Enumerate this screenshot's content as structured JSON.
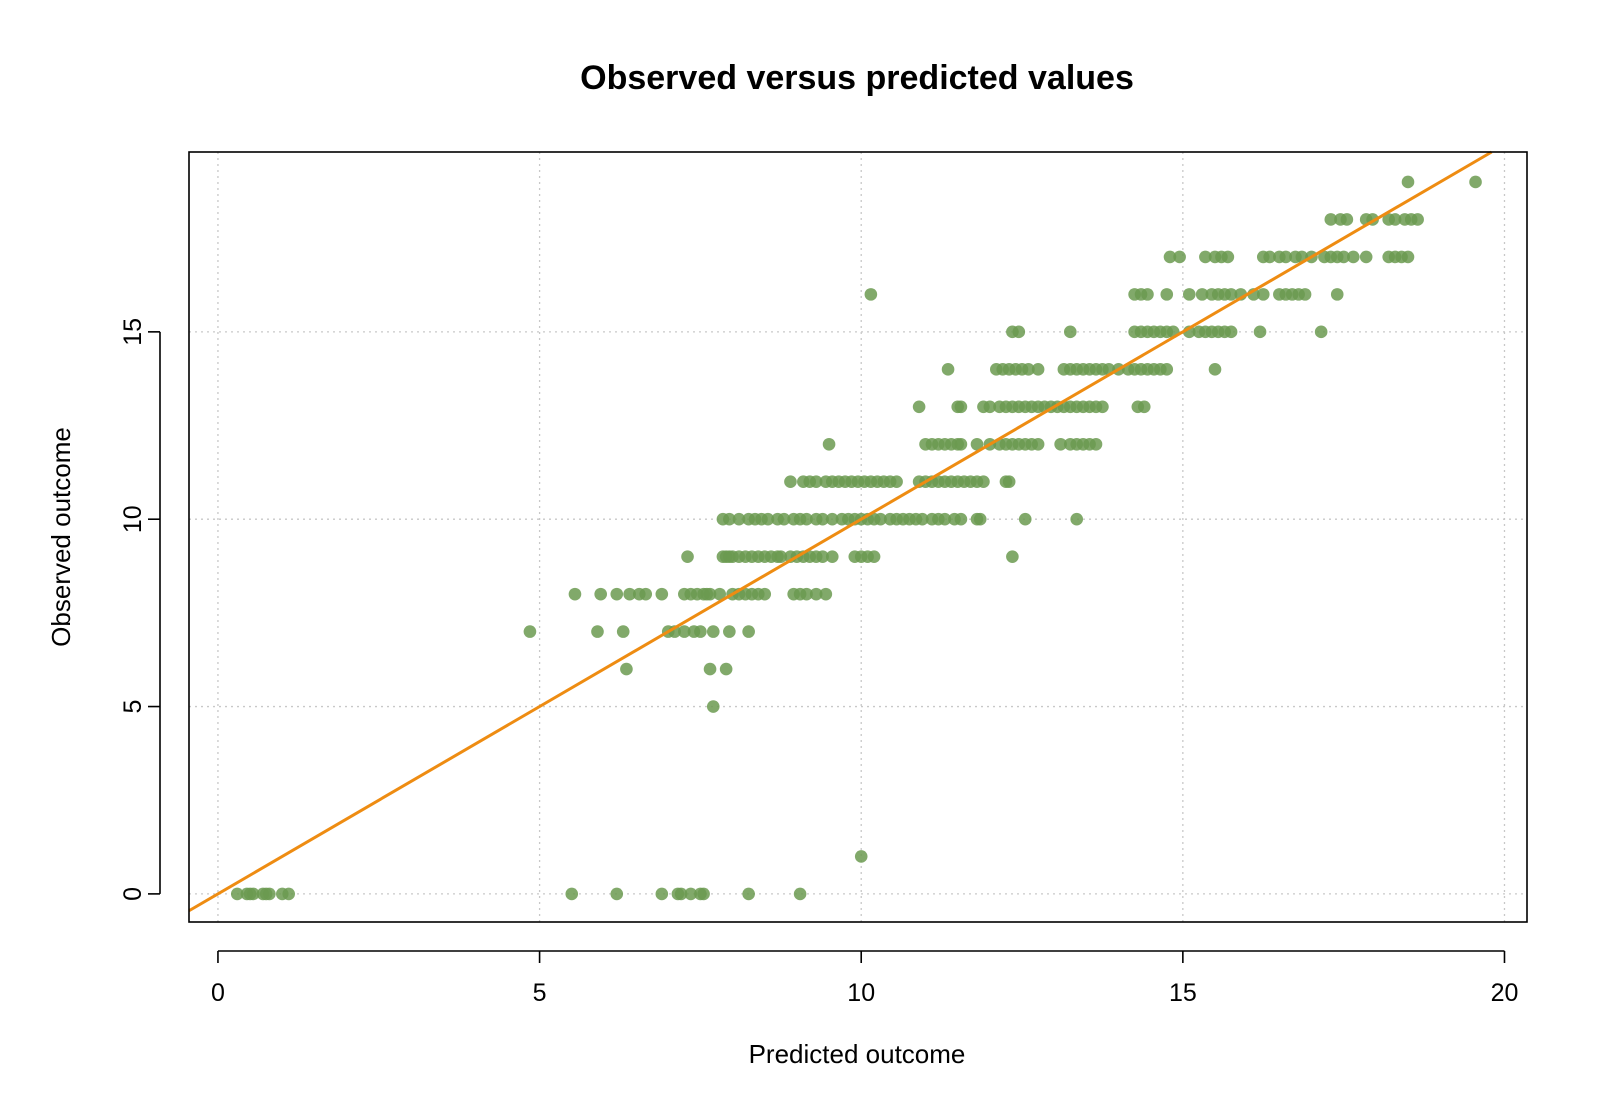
{
  "chart_data": {
    "type": "scatter",
    "title": "Observed versus predicted values",
    "xlabel": "Predicted outcome",
    "ylabel": "Observed outcome",
    "xlim": [
      -0.45,
      20.35
    ],
    "ylim": [
      -0.75,
      19.8
    ],
    "xticks": [
      0,
      5,
      10,
      15,
      20
    ],
    "yticks": [
      0,
      5,
      10,
      15
    ],
    "xtick_labels": [
      "0",
      "5",
      "10",
      "15",
      "20"
    ],
    "ytick_labels": [
      "0",
      "5",
      "10",
      "15"
    ],
    "grid": true,
    "point_color": "#6b9a50",
    "line_color": "#ee8c12",
    "reference_line": {
      "intercept": 0,
      "slope": 1
    },
    "rows": [
      {
        "y": 0,
        "x": [
          0.3,
          0.45,
          0.5,
          0.55,
          0.7,
          0.75,
          0.8,
          1.0,
          1.1,
          5.5,
          6.2,
          6.9,
          7.15,
          7.2,
          7.35,
          7.5,
          7.55,
          8.25,
          9.05
        ]
      },
      {
        "y": 1,
        "x": [
          10.0
        ]
      },
      {
        "y": 5,
        "x": [
          7.7
        ]
      },
      {
        "y": 6,
        "x": [
          6.35,
          7.65,
          7.9
        ]
      },
      {
        "y": 7,
        "x": [
          4.85,
          5.9,
          6.3,
          7.0,
          7.1,
          7.25,
          7.4,
          7.5,
          7.7,
          7.95,
          8.25
        ]
      },
      {
        "y": 8,
        "x": [
          5.55,
          5.95,
          6.2,
          6.4,
          6.55,
          6.65,
          6.9,
          7.25,
          7.35,
          7.45,
          7.55,
          7.6,
          7.65,
          7.8,
          8.0,
          8.1,
          8.2,
          8.3,
          8.4,
          8.5,
          8.95,
          9.05,
          9.15,
          9.3,
          9.45
        ]
      },
      {
        "y": 9,
        "x": [
          7.3,
          7.85,
          7.9,
          7.95,
          8.0,
          8.1,
          8.2,
          8.3,
          8.4,
          8.5,
          8.6,
          8.7,
          8.75,
          8.9,
          9.0,
          9.1,
          9.2,
          9.3,
          9.4,
          9.55,
          9.9,
          10.0,
          10.1,
          10.2,
          12.35
        ]
      },
      {
        "y": 10,
        "x": [
          7.85,
          7.95,
          8.1,
          8.25,
          8.35,
          8.45,
          8.55,
          8.7,
          8.8,
          8.95,
          9.05,
          9.15,
          9.3,
          9.4,
          9.55,
          9.7,
          9.8,
          9.9,
          10.0,
          10.1,
          10.2,
          10.3,
          10.45,
          10.55,
          10.65,
          10.75,
          10.85,
          10.95,
          11.1,
          11.2,
          11.3,
          11.45,
          11.55,
          11.8,
          11.85,
          12.55,
          13.35
        ]
      },
      {
        "y": 11,
        "x": [
          8.9,
          9.1,
          9.2,
          9.3,
          9.45,
          9.55,
          9.65,
          9.75,
          9.85,
          9.95,
          10.05,
          10.15,
          10.25,
          10.35,
          10.45,
          10.55,
          10.9,
          11.0,
          11.1,
          11.2,
          11.3,
          11.4,
          11.5,
          11.6,
          11.7,
          11.8,
          11.9,
          12.25,
          12.3
        ]
      },
      {
        "y": 12,
        "x": [
          9.5,
          11.0,
          11.1,
          11.2,
          11.3,
          11.4,
          11.5,
          11.55,
          11.8,
          12.0,
          12.15,
          12.25,
          12.35,
          12.45,
          12.55,
          12.65,
          12.75,
          13.1,
          13.25,
          13.35,
          13.45,
          13.55,
          13.65
        ]
      },
      {
        "y": 13,
        "x": [
          10.9,
          11.5,
          11.55,
          11.9,
          12.0,
          12.15,
          12.25,
          12.35,
          12.45,
          12.55,
          12.65,
          12.75,
          12.85,
          12.95,
          13.05,
          13.15,
          13.25,
          13.35,
          13.45,
          13.55,
          13.65,
          13.75,
          14.3,
          14.4
        ]
      },
      {
        "y": 14,
        "x": [
          11.35,
          12.1,
          12.2,
          12.3,
          12.4,
          12.5,
          12.6,
          12.75,
          13.15,
          13.25,
          13.35,
          13.45,
          13.55,
          13.65,
          13.75,
          13.85,
          14.0,
          14.15,
          14.25,
          14.35,
          14.45,
          14.55,
          14.65,
          14.75,
          15.5
        ]
      },
      {
        "y": 15,
        "x": [
          12.35,
          12.45,
          13.25,
          14.25,
          14.35,
          14.45,
          14.55,
          14.65,
          14.75,
          14.85,
          15.1,
          15.25,
          15.35,
          15.45,
          15.55,
          15.65,
          15.75,
          16.2,
          17.15
        ]
      },
      {
        "y": 16,
        "x": [
          10.15,
          14.25,
          14.35,
          14.45,
          14.75,
          15.1,
          15.3,
          15.45,
          15.55,
          15.65,
          15.75,
          15.9,
          16.1,
          16.25,
          16.5,
          16.6,
          16.7,
          16.8,
          16.9,
          17.4
        ]
      },
      {
        "y": 17,
        "x": [
          14.8,
          14.95,
          15.35,
          15.5,
          15.6,
          15.7,
          16.25,
          16.35,
          16.5,
          16.6,
          16.75,
          16.85,
          17.0,
          17.2,
          17.3,
          17.4,
          17.5,
          17.65,
          17.85,
          18.2,
          18.3,
          18.4,
          18.5
        ]
      },
      {
        "y": 18,
        "x": [
          17.3,
          17.45,
          17.55,
          17.85,
          17.95,
          18.2,
          18.3,
          18.45,
          18.55,
          18.65
        ]
      },
      {
        "y": 19,
        "x": [
          18.5,
          19.55
        ]
      }
    ]
  }
}
